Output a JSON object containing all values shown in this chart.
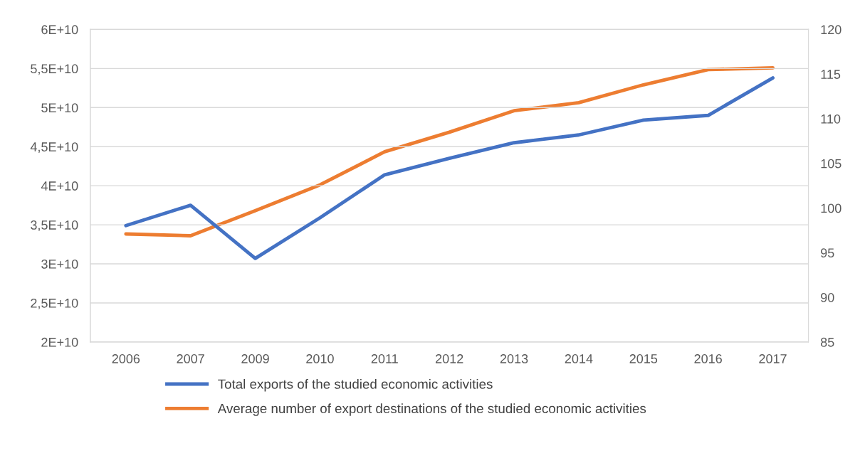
{
  "chart_data": {
    "type": "line",
    "categories": [
      "2006",
      "2007",
      "2009",
      "2010",
      "2011",
      "2012",
      "2013",
      "2014",
      "2015",
      "2016",
      "2017"
    ],
    "series": [
      {
        "name": "Total exports of the studied economic activities",
        "color": "#4472c4",
        "values": [
          34900000000,
          37500000000,
          30700000000,
          35900000000,
          41400000000,
          43500000000,
          45500000000,
          46500000000,
          48400000000,
          49000000000,
          53800000000
        ]
      },
      {
        "name": "Average number of export destinations of the studied economic activities",
        "color": "#ed7d31",
        "axis": "y2",
        "values": [
          97.1,
          96.9,
          99.7,
          102.6,
          106.3,
          108.5,
          110.9,
          111.8,
          113.8,
          115.5,
          115.7
        ]
      }
    ],
    "ylim": [
      20000000000,
      60000000000
    ],
    "yticks": [
      {
        "value": 20000000000,
        "label": "2E+10"
      },
      {
        "value": 25000000000,
        "label": "2,5E+10"
      },
      {
        "value": 30000000000,
        "label": "3E+10"
      },
      {
        "value": 35000000000,
        "label": "3,5E+10"
      },
      {
        "value": 40000000000,
        "label": "4E+10"
      },
      {
        "value": 45000000000,
        "label": "4,5E+10"
      },
      {
        "value": 50000000000,
        "label": "5E+10"
      },
      {
        "value": 55000000000,
        "label": "5,5E+10"
      },
      {
        "value": 60000000000,
        "label": "6E+10"
      }
    ],
    "y2lim": [
      85,
      120
    ],
    "y2ticks": [
      85,
      90,
      95,
      100,
      105,
      110,
      115,
      120
    ],
    "grid": "y",
    "legend": "bottom",
    "marker": "none",
    "line_style": "solid"
  }
}
